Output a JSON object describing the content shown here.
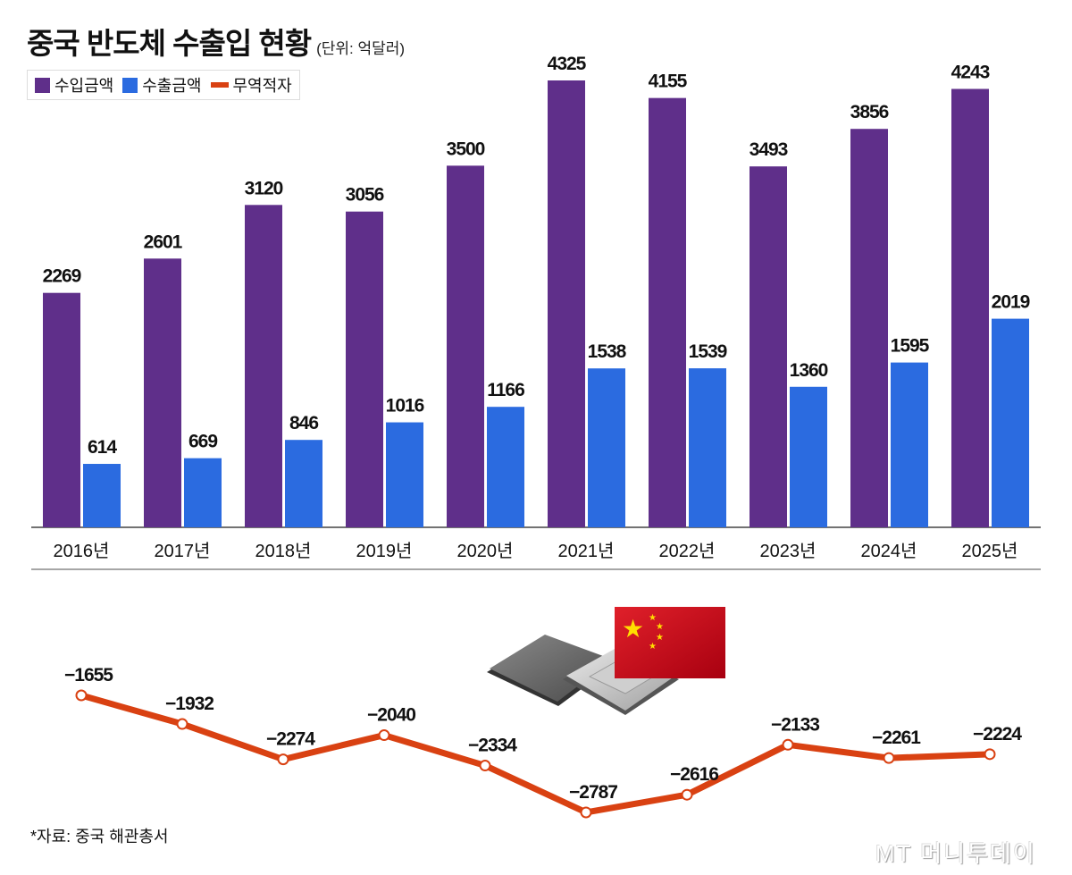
{
  "chart_data": {
    "type": "bar+line",
    "title": "중국 반도체 수출입 현황",
    "unit": "(단위: 억달러)",
    "categories": [
      "2016년",
      "2017년",
      "2018년",
      "2019년",
      "2020년",
      "2021년",
      "2022년",
      "2023년",
      "2024년",
      "2025년"
    ],
    "series": [
      {
        "name": "수입금액",
        "type": "bar",
        "color": "#5f2f8a",
        "values": [
          2269,
          2601,
          3120,
          3056,
          3500,
          4325,
          4155,
          3493,
          3856,
          4243
        ]
      },
      {
        "name": "수출금액",
        "type": "bar",
        "color": "#2b6be0",
        "values": [
          614,
          669,
          846,
          1016,
          1166,
          1538,
          1539,
          1360,
          1595,
          2019
        ]
      },
      {
        "name": "무역적자",
        "type": "line",
        "color": "#d94112",
        "values": [
          -1655,
          -1932,
          -2274,
          -2040,
          -2334,
          -2787,
          -2616,
          -2133,
          -2261,
          -2224
        ]
      }
    ],
    "legend": "top-left",
    "grid": false
  },
  "source": "*자료: 중국 해관총서",
  "logo": "MT 머니투데이"
}
